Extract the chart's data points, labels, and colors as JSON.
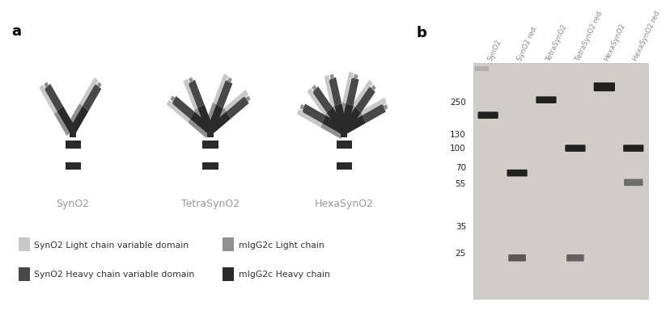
{
  "panel_a_label": "a",
  "panel_b_label": "b",
  "antibody_names": [
    "SynO2",
    "TetraSynO2",
    "HexaSynO2"
  ],
  "antibody_name_color": "#999999",
  "col_light": "#c8c8c8",
  "col_heavy_var": "#484848",
  "col_mlg_light": "#909090",
  "col_mlg_heavy": "#2a2a2a",
  "legend_items": [
    {
      "label": "SynO2 Light chain variable domain",
      "color": "#c8c8c8"
    },
    {
      "label": "SynO2 Heavy chain variable domain",
      "color": "#484848"
    },
    {
      "label": "mIgG2c Light chain",
      "color": "#909090"
    },
    {
      "label": "mIgG2c Heavy chain",
      "color": "#2a2a2a"
    }
  ],
  "gel_bg_color": "#d0cdc8",
  "gel_lane_labels": [
    "SynO2",
    "SynO2 red.",
    "TetraSynO2",
    "TetraSynO2 red.",
    "HexaSynO2",
    "HexaSynO2 red."
  ],
  "mw_labels": [
    "250",
    "130",
    "100",
    "70",
    "55",
    "35",
    "25"
  ],
  "background_color": "#ffffff"
}
